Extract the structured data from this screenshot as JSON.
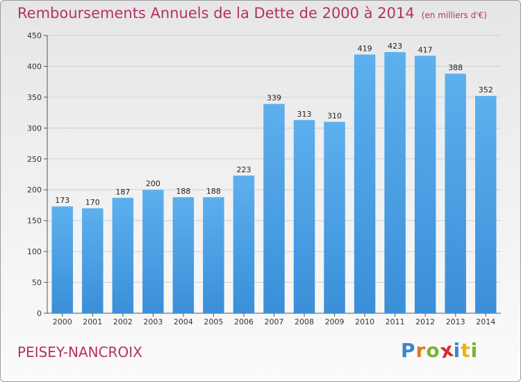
{
  "header": {
    "title": "Remboursements Annuels de la Dette de 2000 à 2014",
    "unit": "(en milliers d'€)"
  },
  "footer": {
    "place": "PEISEY-NANCROIX",
    "logo_letters": [
      "P",
      "r",
      "o",
      "x",
      "i",
      "t",
      "i"
    ],
    "logo_colors": [
      "#3a86c8",
      "#e07a1e",
      "#7ab32e",
      "#d62b2b",
      "#3a86c8",
      "#e8b21a",
      "#7ab32e"
    ]
  },
  "colors": {
    "bar": "#3b8fd8",
    "bar_light": "#5cb0ee",
    "title": "#b5306a",
    "grid": "#cfcfcf"
  },
  "chart_data": {
    "type": "bar",
    "title": "Remboursements Annuels de la Dette de 2000 à 2014",
    "categories": [
      "2000",
      "2001",
      "2002",
      "2003",
      "2004",
      "2005",
      "2006",
      "2007",
      "2008",
      "2009",
      "2010",
      "2011",
      "2012",
      "2013",
      "2014"
    ],
    "values": [
      173,
      170,
      187,
      200,
      188,
      188,
      223,
      339,
      313,
      310,
      419,
      423,
      417,
      388,
      352
    ],
    "ylim": [
      0,
      450
    ],
    "yticks": [
      0,
      50,
      100,
      150,
      200,
      250,
      300,
      350,
      400,
      450
    ],
    "grid": true,
    "xlabel": "",
    "ylabel": ""
  }
}
